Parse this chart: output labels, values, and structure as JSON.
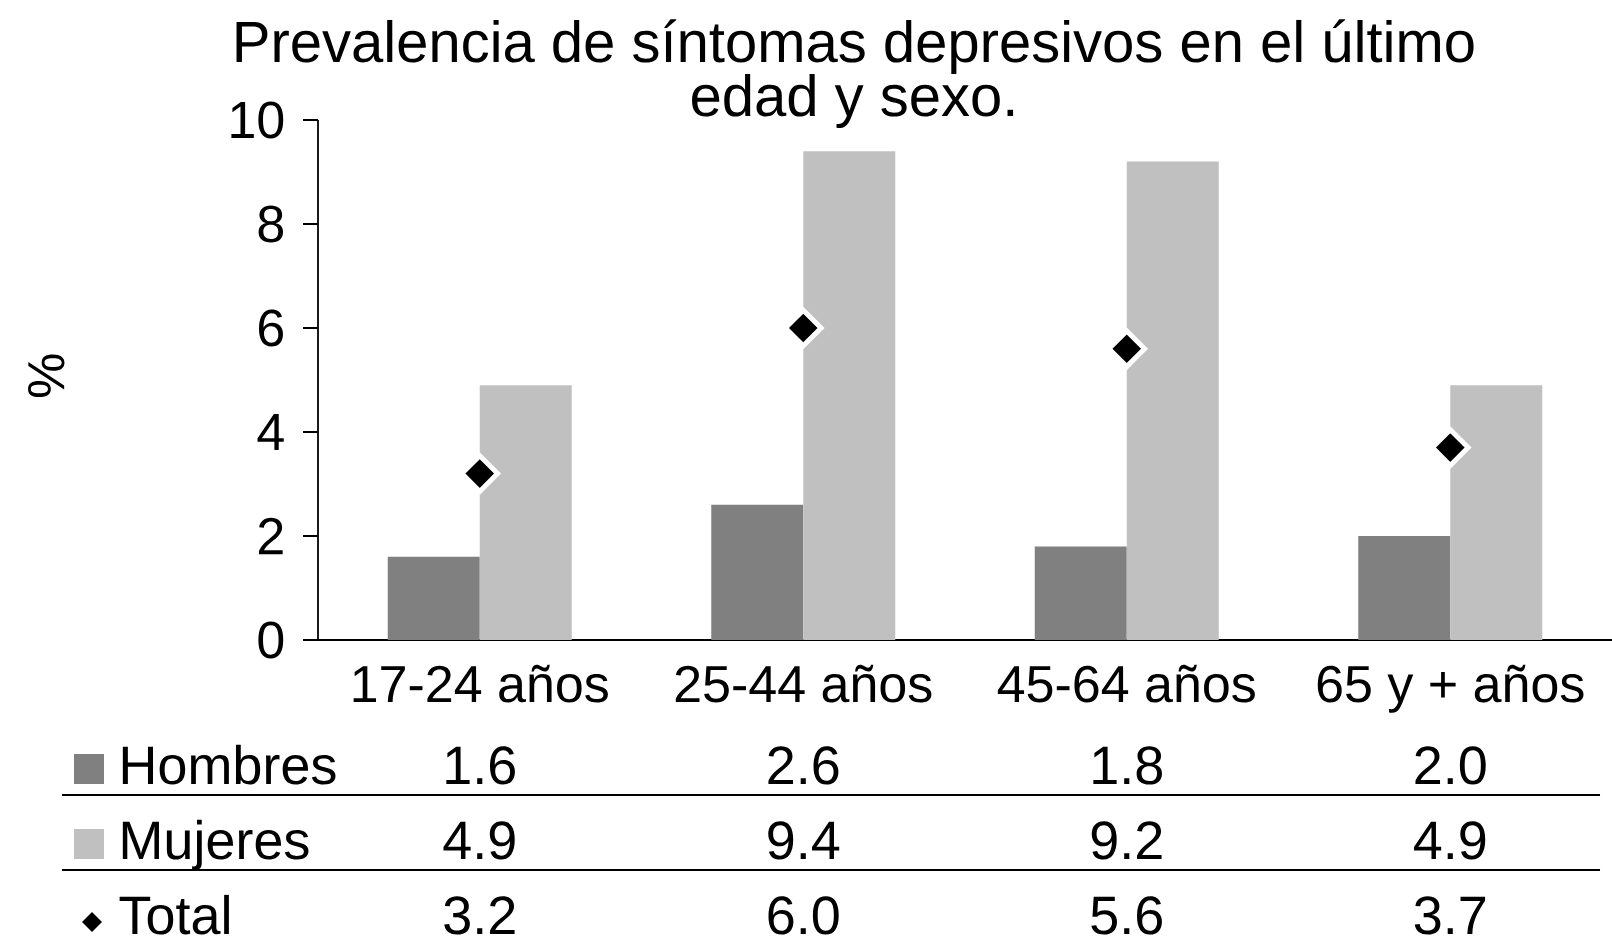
{
  "chart_data": {
    "type": "bar",
    "title": "Prevalencia de síntomas depresivos en el último",
    "subtitle": "edad y sexo.",
    "ylabel": "%",
    "categories": [
      "17-24 años",
      "25-44 años",
      "45-64 años",
      "65 y + años"
    ],
    "series": [
      {
        "name": "Hombres",
        "color": "#808080",
        "values": [
          1.6,
          2.6,
          1.8,
          2.0
        ],
        "value_labels": [
          "1.6",
          "2.6",
          "1.8",
          "2.0"
        ]
      },
      {
        "name": "Mujeres",
        "color": "#c0c0c0",
        "values": [
          4.9,
          9.4,
          9.2,
          4.9
        ],
        "value_labels": [
          "4.9",
          "9.4",
          "9.2",
          "4.9"
        ]
      },
      {
        "name": "Total",
        "type": "scatter",
        "marker": "diamond",
        "color": "#000000",
        "values": [
          3.2,
          6.0,
          5.6,
          3.7
        ],
        "value_labels": [
          "3.2",
          "6.0",
          "5.6",
          "3.7"
        ]
      }
    ],
    "ylim": [
      0,
      10
    ],
    "yticks": [
      0,
      2,
      4,
      6,
      8,
      10
    ],
    "legend": "bottom"
  }
}
